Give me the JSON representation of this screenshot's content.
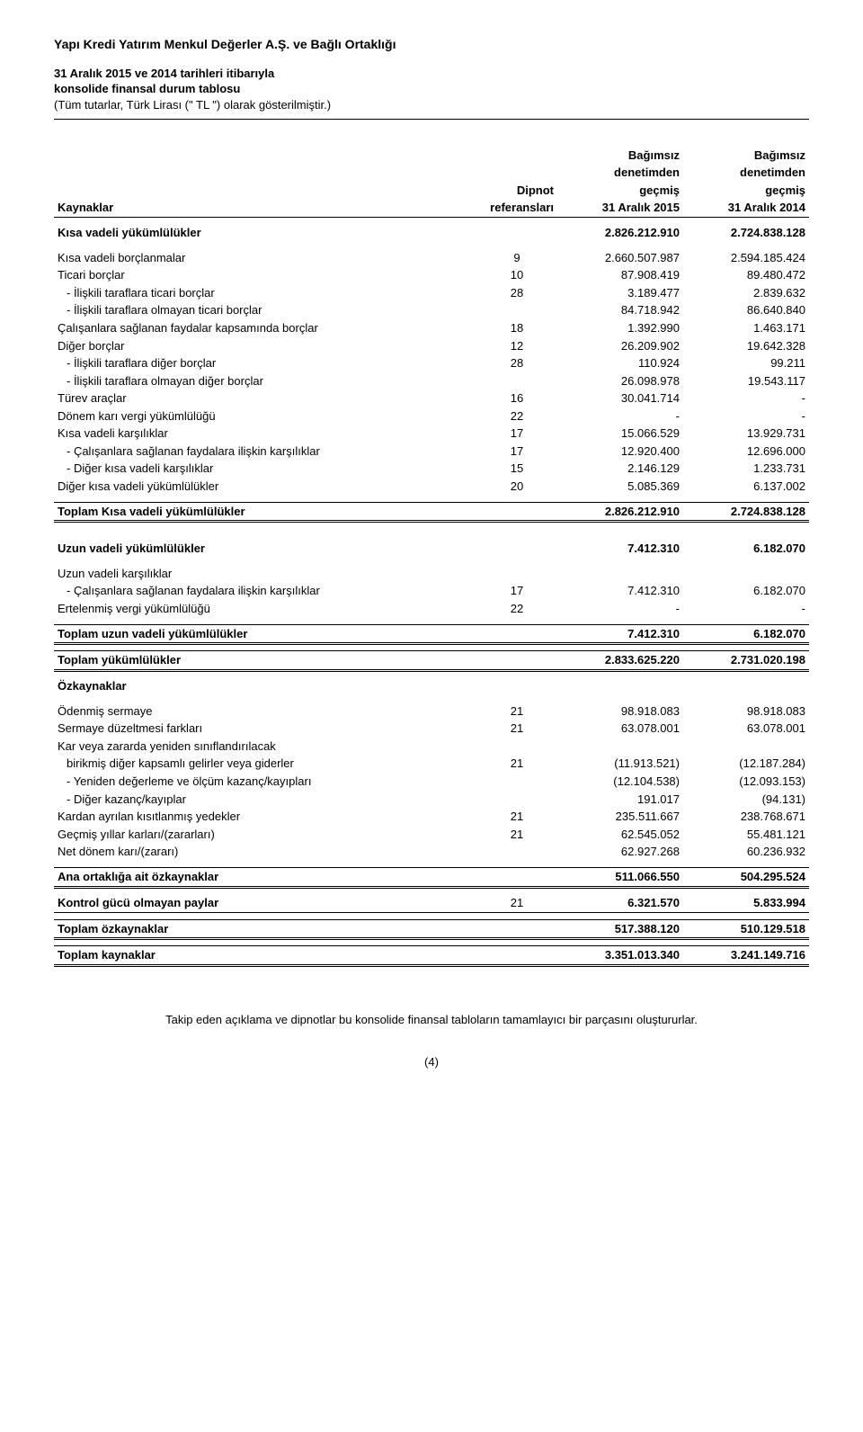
{
  "header": {
    "title": "Yapı Kredi Yatırım Menkul Değerler A.Ş. ve Bağlı Ortaklığı",
    "line1": "31 Aralık 2015 ve 2014 tarihleri itibarıyla",
    "line2": "konsolide finansal durum tablosu",
    "note": "(Tüm tutarlar, Türk Lirası (\" TL \") olarak gösterilmiştir.)"
  },
  "colhead": {
    "c1a": "Bağımsız",
    "c1b": "denetimden",
    "c1c": "geçmiş",
    "c2a": "Bağımsız",
    "c2b": "denetimden",
    "c2c": "geçmiş",
    "note1": "Dipnot",
    "note2": "referansları",
    "date1": "31 Aralık 2015",
    "date2": "31 Aralık 2014",
    "kaynaklar": "Kaynaklar"
  },
  "sec": {
    "kisa_vadeli_yuk": "Kısa vadeli yükümlülükler",
    "kisa_vadeli_yuk_v1": "2.826.212.910",
    "kisa_vadeli_yuk_v2": "2.724.838.128",
    "uzun_vadeli_yuk": "Uzun vadeli yükümlülükler",
    "uzun_vadeli_yuk_v1": "7.412.310",
    "uzun_vadeli_yuk_v2": "6.182.070",
    "ozkaynaklar": "Özkaynaklar"
  },
  "rows_short": [
    {
      "label": "Kısa vadeli borçlanmalar",
      "note": "9",
      "v1": "2.660.507.987",
      "v2": "2.594.185.424",
      "indent": 0
    },
    {
      "label": "Ticari borçlar",
      "note": "10",
      "v1": "87.908.419",
      "v2": "89.480.472",
      "indent": 0
    },
    {
      "label": "- İlişkili taraflara ticari borçlar",
      "note": "28",
      "v1": "3.189.477",
      "v2": "2.839.632",
      "indent": 1
    },
    {
      "label": "- İlişkili taraflara olmayan ticari borçlar",
      "note": "",
      "v1": "84.718.942",
      "v2": "86.640.840",
      "indent": 1
    },
    {
      "label": "Çalışanlara sağlanan faydalar kapsamında borçlar",
      "note": "18",
      "v1": "1.392.990",
      "v2": "1.463.171",
      "indent": 0
    },
    {
      "label": "Diğer borçlar",
      "note": "12",
      "v1": "26.209.902",
      "v2": "19.642.328",
      "indent": 0
    },
    {
      "label": "- İlişkili taraflara diğer borçlar",
      "note": "28",
      "v1": "110.924",
      "v2": "99.211",
      "indent": 1
    },
    {
      "label": "- İlişkili taraflara olmayan diğer borçlar",
      "note": "",
      "v1": "26.098.978",
      "v2": "19.543.117",
      "indent": 1
    },
    {
      "label": "Türev araçlar",
      "note": "16",
      "v1": "30.041.714",
      "v2": "-",
      "indent": 0
    },
    {
      "label": "Dönem karı vergi yükümlülüğü",
      "note": "22",
      "v1": "-",
      "v2": "-",
      "indent": 0
    },
    {
      "label": "Kısa vadeli karşılıklar",
      "note": "17",
      "v1": "15.066.529",
      "v2": "13.929.731",
      "indent": 0
    },
    {
      "label": "- Çalışanlara sağlanan faydalara ilişkin karşılıklar",
      "note": "17",
      "v1": "12.920.400",
      "v2": "12.696.000",
      "indent": 1
    },
    {
      "label": "- Diğer kısa vadeli karşılıklar",
      "note": "15",
      "v1": "2.146.129",
      "v2": "1.233.731",
      "indent": 1
    },
    {
      "label": "Diğer kısa vadeli yükümlülükler",
      "note": "20",
      "v1": "5.085.369",
      "v2": "6.137.002",
      "indent": 0
    }
  ],
  "total_short": {
    "label": "Toplam Kısa vadeli yükümlülükler",
    "v1": "2.826.212.910",
    "v2": "2.724.838.128"
  },
  "rows_long": [
    {
      "label": "Uzun vadeli karşılıklar",
      "note": "",
      "v1": "",
      "v2": "",
      "indent": 0
    },
    {
      "label": "- Çalışanlara sağlanan faydalara ilişkin karşılıklar",
      "note": "17",
      "v1": "7.412.310",
      "v2": "6.182.070",
      "indent": 1
    },
    {
      "label": "Ertelenmiş vergi yükümlülüğü",
      "note": "22",
      "v1": "-",
      "v2": "-",
      "indent": 0
    }
  ],
  "total_long": {
    "label": "Toplam uzun vadeli yükümlülükler",
    "v1": "7.412.310",
    "v2": "6.182.070"
  },
  "total_liab": {
    "label": "Toplam yükümlülükler",
    "v1": "2.833.625.220",
    "v2": "2.731.020.198"
  },
  "rows_equity": [
    {
      "label": "Ödenmiş sermaye",
      "note": "21",
      "v1": "98.918.083",
      "v2": "98.918.083",
      "indent": 0
    },
    {
      "label": "Sermaye düzeltmesi farkları",
      "note": "21",
      "v1": "63.078.001",
      "v2": "63.078.001",
      "indent": 0
    },
    {
      "label": "Kar veya zararda yeniden sınıflandırılacak",
      "note": "",
      "v1": "",
      "v2": "",
      "indent": 0
    },
    {
      "label": "birikmiş diğer kapsamlı gelirler veya giderler",
      "note": "21",
      "v1": "(11.913.521)",
      "v2": "(12.187.284)",
      "indent": 1
    },
    {
      "label": "- Yeniden değerleme ve ölçüm kazanç/kayıpları",
      "note": "",
      "v1": "(12.104.538)",
      "v2": "(12.093.153)",
      "indent": 1
    },
    {
      "label": "- Diğer kazanç/kayıplar",
      "note": "",
      "v1": "191.017",
      "v2": "(94.131)",
      "indent": 1
    },
    {
      "label": "Kardan ayrılan kısıtlanmış yedekler",
      "note": "21",
      "v1": "235.511.667",
      "v2": "238.768.671",
      "indent": 0
    },
    {
      "label": "Geçmiş yıllar karları/(zararları)",
      "note": "21",
      "v1": "62.545.052",
      "v2": "55.481.121",
      "indent": 0
    },
    {
      "label": "Net dönem karı/(zararı)",
      "note": "",
      "v1": "62.927.268",
      "v2": "60.236.932",
      "indent": 0
    }
  ],
  "parent_equity": {
    "label": "Ana ortaklığa ait özkaynaklar",
    "v1": "511.066.550",
    "v2": "504.295.524"
  },
  "nci": {
    "label": "Kontrol gücü olmayan paylar",
    "note": "21",
    "v1": "6.321.570",
    "v2": "5.833.994"
  },
  "total_equity": {
    "label": "Toplam özkaynaklar",
    "v1": "517.388.120",
    "v2": "510.129.518"
  },
  "total_sources": {
    "label": "Toplam kaynaklar",
    "v1": "3.351.013.340",
    "v2": "3.241.149.716"
  },
  "footer": "Takip eden açıklama ve dipnotlar bu konsolide finansal tabloların tamamlayıcı bir parçasını oluştururlar.",
  "page": "(4)"
}
